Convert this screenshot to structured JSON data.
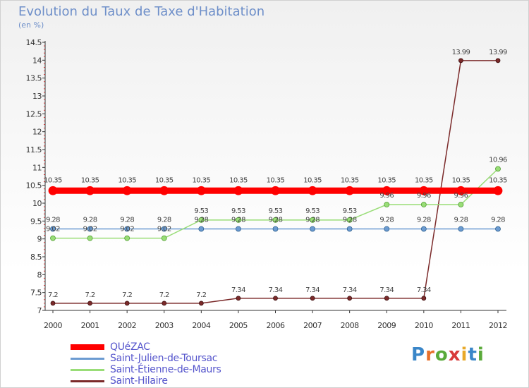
{
  "title": "Evolution du Taux de Taxe d'Habitation",
  "unit_label": "(en %)",
  "logo": {
    "text": "Proxiti",
    "letter_colors": [
      "#3a86c8",
      "#e8702a",
      "#5aaa3a",
      "#d83a3a",
      "#e8a92a",
      "#3a86c8",
      "#5aaa3a"
    ]
  },
  "chart_data": {
    "type": "line",
    "title": "Evolution du Taux de Taxe d'Habitation",
    "ylabel": "(en %)",
    "xlabel": "",
    "x": [
      "2000",
      "2001",
      "2002",
      "2003",
      "2004",
      "2005",
      "2006",
      "2007",
      "2008",
      "2009",
      "2010",
      "2011",
      "2012"
    ],
    "ylim": [
      7,
      14.5
    ],
    "yticks": [
      "7",
      "7.5",
      "8",
      "8.5",
      "9",
      "9.5",
      "10",
      "10.5",
      "11",
      "11.5",
      "12",
      "12.5",
      "13",
      "13.5",
      "14",
      "14.5"
    ],
    "grid": false,
    "series": [
      {
        "name": "QUéZAC",
        "color": "#ff0000",
        "values": [
          10.35,
          10.35,
          10.35,
          10.35,
          10.35,
          10.35,
          10.35,
          10.35,
          10.35,
          10.35,
          10.35,
          10.35,
          10.35
        ],
        "labels": [
          "10.35",
          "10.35",
          "10.35",
          "10.35",
          "10.35",
          "10.35",
          "10.35",
          "10.35",
          "10.35",
          "10.35",
          "10.35",
          "10.35",
          "10.35"
        ]
      },
      {
        "name": "Saint-Julien-de-Toursac",
        "color": "#6b9bd1",
        "values": [
          9.28,
          9.28,
          9.28,
          9.28,
          9.28,
          9.28,
          9.28,
          9.28,
          9.28,
          9.28,
          9.28,
          9.28,
          9.28
        ],
        "labels": [
          "9.28",
          "9.28",
          "9.28",
          "9.28",
          "9.28",
          "9.28",
          "9.28",
          "9.28",
          "9.28",
          "9.28",
          "9.28",
          "9.28",
          "9.28"
        ]
      },
      {
        "name": "Saint-Étienne-de-Maurs",
        "color": "#99dd77",
        "values": [
          9.02,
          9.02,
          9.02,
          9.02,
          9.53,
          9.53,
          9.53,
          9.53,
          9.53,
          9.96,
          9.96,
          9.96,
          10.96
        ],
        "labels": [
          "9.02",
          "9.02",
          "9.02",
          "9.02",
          "9.53",
          "9.53",
          "9.53",
          "9.53",
          "9.53",
          "9.96",
          "9.96",
          "9.96",
          "10.96"
        ]
      },
      {
        "name": "Saint-Hilaire",
        "color": "#7b2a2a",
        "values": [
          7.2,
          7.2,
          7.2,
          7.2,
          7.2,
          7.34,
          7.34,
          7.34,
          7.34,
          7.34,
          7.34,
          13.99,
          13.99
        ],
        "labels": [
          "7.2",
          "7.2",
          "7.2",
          "7.2",
          "7.2",
          "7.34",
          "7.34",
          "7.34",
          "7.34",
          "7.34",
          "7.34",
          "13.99",
          "13.99"
        ]
      }
    ],
    "legend_position": "bottom-left"
  }
}
